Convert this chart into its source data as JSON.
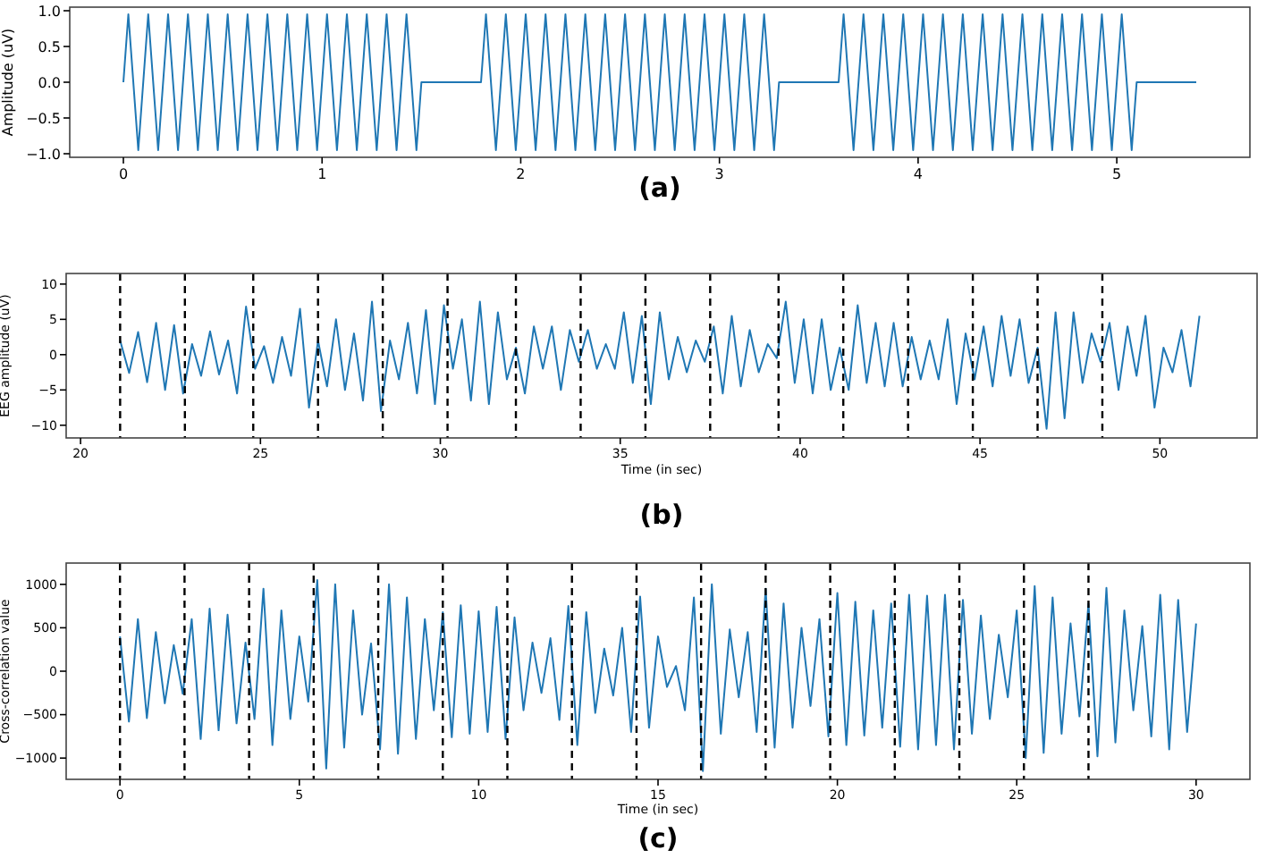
{
  "chart_data": [
    {
      "type": "line",
      "title": "(a)",
      "ylabel": "Amplitude (uV)",
      "color": "#1f77b4",
      "line_style": "solid",
      "xlim": [
        -0.27,
        5.67
      ],
      "ylim": [
        -1.05,
        1.05
      ],
      "xticks": [
        0,
        1,
        2,
        3,
        4,
        5
      ],
      "yticks": [
        {
          "value": -1,
          "label": "−1.0"
        },
        {
          "value": -0.5,
          "label": "−0.5"
        },
        {
          "value": 0,
          "label": "0.0"
        },
        {
          "value": 0.5,
          "label": "0.5"
        },
        {
          "value": 1,
          "label": "1.0"
        }
      ],
      "x": [
        0,
        0.025,
        0.075,
        0.125,
        0.175,
        0.225,
        0.275,
        0.325,
        0.375,
        0.425,
        0.475,
        0.525,
        0.575,
        0.625,
        0.675,
        0.725,
        0.775,
        0.825,
        0.875,
        0.925,
        0.975,
        1.025,
        1.075,
        1.125,
        1.175,
        1.225,
        1.275,
        1.325,
        1.375,
        1.425,
        1.475,
        1.5,
        1.8,
        1.825,
        1.875,
        1.925,
        1.975,
        2.025,
        2.075,
        2.125,
        2.175,
        2.225,
        2.275,
        2.325,
        2.375,
        2.425,
        2.475,
        2.525,
        2.575,
        2.625,
        2.675,
        2.725,
        2.775,
        2.825,
        2.875,
        2.925,
        2.975,
        3.025,
        3.075,
        3.125,
        3.175,
        3.225,
        3.275,
        3.3,
        3.6,
        3.625,
        3.675,
        3.725,
        3.775,
        3.825,
        3.875,
        3.925,
        3.975,
        4.025,
        4.075,
        4.125,
        4.175,
        4.225,
        4.275,
        4.325,
        4.375,
        4.425,
        4.475,
        4.525,
        4.575,
        4.625,
        4.675,
        4.725,
        4.775,
        4.825,
        4.875,
        4.925,
        4.975,
        5.025,
        5.075,
        5.1,
        5.4
      ],
      "values": [
        0,
        0.95,
        -0.95,
        0.95,
        -0.95,
        0.95,
        -0.95,
        0.95,
        -0.95,
        0.95,
        -0.95,
        0.95,
        -0.95,
        0.95,
        -0.95,
        0.95,
        -0.95,
        0.95,
        -0.95,
        0.95,
        -0.95,
        0.95,
        -0.95,
        0.95,
        -0.95,
        0.95,
        -0.95,
        0.95,
        -0.95,
        0.95,
        -0.95,
        0,
        0,
        0.95,
        -0.95,
        0.95,
        -0.95,
        0.95,
        -0.95,
        0.95,
        -0.95,
        0.95,
        -0.95,
        0.95,
        -0.95,
        0.95,
        -0.95,
        0.95,
        -0.95,
        0.95,
        -0.95,
        0.95,
        -0.95,
        0.95,
        -0.95,
        0.95,
        -0.95,
        0.95,
        -0.95,
        0.95,
        -0.95,
        0.95,
        -0.95,
        0,
        0,
        0.95,
        -0.95,
        0.95,
        -0.95,
        0.95,
        -0.95,
        0.95,
        -0.95,
        0.95,
        -0.95,
        0.95,
        -0.95,
        0.95,
        -0.95,
        0.95,
        -0.95,
        0.95,
        -0.95,
        0.95,
        -0.95,
        0.95,
        -0.95,
        0.95,
        -0.95,
        0.95,
        -0.95,
        0.95,
        -0.95,
        0.95,
        -0.95,
        0,
        0
      ]
    },
    {
      "type": "line",
      "title": "(b)",
      "xlabel": "Time (in sec)",
      "ylabel": "EEG amplitude (uV)",
      "color": "#1f77b4",
      "line_style": "solid",
      "xlim": [
        19.6,
        52.7
      ],
      "ylim": [
        -11.8,
        11.5
      ],
      "xticks": [
        20,
        25,
        30,
        35,
        40,
        45,
        50
      ],
      "yticks": [
        {
          "value": -10,
          "label": "−10"
        },
        {
          "value": -5,
          "label": "−5"
        },
        0,
        5,
        10
      ],
      "x": [
        21.1,
        21.35,
        21.6,
        21.85,
        22.1,
        22.35,
        22.6,
        22.85,
        23.1,
        23.35,
        23.6,
        23.85,
        24.1,
        24.35,
        24.6,
        24.85,
        25.1,
        25.35,
        25.6,
        25.85,
        26.1,
        26.35,
        26.6,
        26.85,
        27.1,
        27.35,
        27.6,
        27.85,
        28.1,
        28.35,
        28.6,
        28.85,
        29.1,
        29.35,
        29.6,
        29.85,
        30.1,
        30.35,
        30.6,
        30.85,
        31.1,
        31.35,
        31.6,
        31.85,
        32.1,
        32.35,
        32.6,
        32.85,
        33.1,
        33.35,
        33.6,
        33.85,
        34.1,
        34.35,
        34.6,
        34.85,
        35.1,
        35.35,
        35.6,
        35.85,
        36.1,
        36.35,
        36.6,
        36.85,
        37.1,
        37.35,
        37.6,
        37.85,
        38.1,
        38.35,
        38.6,
        38.85,
        39.1,
        39.35,
        39.6,
        39.85,
        40.1,
        40.35,
        40.6,
        40.85,
        41.1,
        41.35,
        41.6,
        41.85,
        42.1,
        42.35,
        42.6,
        42.85,
        43.1,
        43.35,
        43.6,
        43.85,
        44.1,
        44.35,
        44.6,
        44.85,
        45.1,
        45.35,
        45.6,
        45.85,
        46.1,
        46.35,
        46.6,
        46.85,
        47.1,
        47.35,
        47.6,
        47.85,
        48.1,
        48.35,
        48.6,
        48.85,
        49.1,
        49.35,
        49.6,
        49.85,
        50.1,
        50.35,
        50.6,
        50.85,
        51.1
      ],
      "values": [
        2,
        -2.6,
        3.2,
        -3.9,
        4.5,
        -5,
        4.2,
        -5.5,
        1.5,
        -3,
        3.3,
        -2.8,
        2,
        -5.5,
        6.8,
        -2,
        1.2,
        -4,
        2.5,
        -3,
        6.5,
        -7.5,
        2,
        -4.5,
        5,
        -5,
        3,
        -6.5,
        7.5,
        -8,
        2,
        -3.5,
        4.5,
        -5.5,
        6.3,
        -7,
        7,
        -2,
        5,
        -6.5,
        7.5,
        -7,
        6,
        -3.5,
        1,
        -5.5,
        4,
        -2,
        4,
        -5,
        3.5,
        -1,
        3.5,
        -2,
        1.5,
        -2,
        6,
        -4,
        5.5,
        -7,
        6,
        -3.5,
        2.5,
        -2.5,
        2,
        -1,
        4,
        -5.5,
        5.5,
        -4.5,
        3.5,
        -2.5,
        1.5,
        -0.5,
        7.5,
        -4,
        5,
        -5.5,
        5,
        -5,
        1,
        -5,
        7,
        -4,
        4.5,
        -4.5,
        4.5,
        -4.5,
        2.5,
        -3.5,
        2,
        -3.5,
        5,
        -7,
        3,
        -3.5,
        4,
        -4.5,
        5.5,
        -3,
        5,
        -4,
        1,
        -10.5,
        6,
        -9,
        6,
        -4,
        3,
        -1,
        4.5,
        -5,
        4,
        -3,
        5.5,
        -7.5,
        1,
        -2.5,
        3.5,
        -4.5,
        5.5
      ],
      "ref_lines": [
        {
          "axis": "x",
          "value": 21.1,
          "color": "#000000",
          "line_style": "dashed"
        },
        {
          "axis": "x",
          "value": 22.9,
          "color": "#000000",
          "line_style": "dashed"
        },
        {
          "axis": "x",
          "value": 24.8,
          "color": "#000000",
          "line_style": "dashed"
        },
        {
          "axis": "x",
          "value": 26.6,
          "color": "#000000",
          "line_style": "dashed"
        },
        {
          "axis": "x",
          "value": 28.4,
          "color": "#000000",
          "line_style": "dashed"
        },
        {
          "axis": "x",
          "value": 30.2,
          "color": "#000000",
          "line_style": "dashed"
        },
        {
          "axis": "x",
          "value": 32.1,
          "color": "#000000",
          "line_style": "dashed"
        },
        {
          "axis": "x",
          "value": 33.9,
          "color": "#000000",
          "line_style": "dashed"
        },
        {
          "axis": "x",
          "value": 35.7,
          "color": "#000000",
          "line_style": "dashed"
        },
        {
          "axis": "x",
          "value": 37.5,
          "color": "#000000",
          "line_style": "dashed"
        },
        {
          "axis": "x",
          "value": 39.4,
          "color": "#000000",
          "line_style": "dashed"
        },
        {
          "axis": "x",
          "value": 41.2,
          "color": "#000000",
          "line_style": "dashed"
        },
        {
          "axis": "x",
          "value": 43.0,
          "color": "#000000",
          "line_style": "dashed"
        },
        {
          "axis": "x",
          "value": 44.8,
          "color": "#000000",
          "line_style": "dashed"
        },
        {
          "axis": "x",
          "value": 46.6,
          "color": "#000000",
          "line_style": "dashed"
        },
        {
          "axis": "x",
          "value": 48.4,
          "color": "#000000",
          "line_style": "dashed"
        }
      ]
    },
    {
      "type": "line",
      "title": "(c)",
      "xlabel": "Time (in sec)",
      "ylabel": "Cross-correlation value",
      "color": "#1f77b4",
      "line_style": "solid",
      "xlim": [
        -1.5,
        31.5
      ],
      "ylim": [
        -1245,
        1245
      ],
      "xticks": [
        0,
        5,
        10,
        15,
        20,
        25,
        30
      ],
      "yticks": [
        {
          "value": -1000,
          "label": "−1000"
        },
        {
          "value": -500,
          "label": "−500"
        },
        0,
        500,
        1000
      ],
      "x": [
        0,
        0.25,
        0.5,
        0.75,
        1,
        1.25,
        1.5,
        1.75,
        2,
        2.25,
        2.5,
        2.75,
        3,
        3.25,
        3.5,
        3.75,
        4,
        4.25,
        4.5,
        4.75,
        5,
        5.25,
        5.5,
        5.75,
        6,
        6.25,
        6.5,
        6.75,
        7,
        7.25,
        7.5,
        7.75,
        8,
        8.25,
        8.5,
        8.75,
        9,
        9.25,
        9.5,
        9.75,
        10,
        10.25,
        10.5,
        10.75,
        11,
        11.25,
        11.5,
        11.75,
        12,
        12.25,
        12.5,
        12.75,
        13,
        13.25,
        13.5,
        13.75,
        14,
        14.25,
        14.5,
        14.75,
        15,
        15.25,
        15.5,
        15.75,
        16,
        16.25,
        16.5,
        16.75,
        17,
        17.25,
        17.5,
        17.75,
        18,
        18.25,
        18.5,
        18.75,
        19,
        19.25,
        19.5,
        19.75,
        20,
        20.25,
        20.5,
        20.75,
        21,
        21.25,
        21.5,
        21.75,
        22,
        22.25,
        22.5,
        22.75,
        23,
        23.25,
        23.5,
        23.75,
        24,
        24.25,
        24.5,
        24.75,
        25,
        25.25,
        25.5,
        25.75,
        26,
        26.25,
        26.5,
        26.75,
        27,
        27.25,
        27.5,
        27.75,
        28,
        28.25,
        28.5,
        28.75,
        29,
        29.25,
        29.5,
        29.75,
        30
      ],
      "values": [
        400,
        -580,
        600,
        -540,
        450,
        -370,
        300,
        -260,
        600,
        -780,
        720,
        -680,
        650,
        -600,
        330,
        -550,
        950,
        -850,
        700,
        -550,
        400,
        -350,
        1050,
        -1120,
        1000,
        -880,
        700,
        -500,
        320,
        -900,
        1000,
        -950,
        850,
        -780,
        600,
        -450,
        680,
        -760,
        760,
        -720,
        690,
        -700,
        740,
        -780,
        620,
        -450,
        330,
        -250,
        380,
        -560,
        750,
        -850,
        680,
        -480,
        260,
        -280,
        500,
        -700,
        860,
        -650,
        400,
        -180,
        60,
        -450,
        850,
        -1150,
        1000,
        -720,
        480,
        -300,
        450,
        -700,
        950,
        -880,
        780,
        -650,
        500,
        -400,
        600,
        -750,
        900,
        -850,
        800,
        -740,
        700,
        -650,
        780,
        -870,
        880,
        -900,
        870,
        -850,
        880,
        -900,
        820,
        -720,
        640,
        -550,
        420,
        -300,
        700,
        -1000,
        980,
        -940,
        850,
        -720,
        550,
        -520,
        780,
        -980,
        960,
        -820,
        700,
        -450,
        520,
        -750,
        880,
        -900,
        820,
        -700,
        550
      ],
      "ref_lines": [
        {
          "axis": "x",
          "value": 0,
          "color": "#000000",
          "line_style": "dashed"
        },
        {
          "axis": "x",
          "value": 1.8,
          "color": "#000000",
          "line_style": "dashed"
        },
        {
          "axis": "x",
          "value": 3.6,
          "color": "#000000",
          "line_style": "dashed"
        },
        {
          "axis": "x",
          "value": 5.4,
          "color": "#000000",
          "line_style": "dashed"
        },
        {
          "axis": "x",
          "value": 7.2,
          "color": "#000000",
          "line_style": "dashed"
        },
        {
          "axis": "x",
          "value": 9,
          "color": "#000000",
          "line_style": "dashed"
        },
        {
          "axis": "x",
          "value": 10.8,
          "color": "#000000",
          "line_style": "dashed"
        },
        {
          "axis": "x",
          "value": 12.6,
          "color": "#000000",
          "line_style": "dashed"
        },
        {
          "axis": "x",
          "value": 14.4,
          "color": "#000000",
          "line_style": "dashed"
        },
        {
          "axis": "x",
          "value": 16.2,
          "color": "#000000",
          "line_style": "dashed"
        },
        {
          "axis": "x",
          "value": 18,
          "color": "#000000",
          "line_style": "dashed"
        },
        {
          "axis": "x",
          "value": 19.8,
          "color": "#000000",
          "line_style": "dashed"
        },
        {
          "axis": "x",
          "value": 21.6,
          "color": "#000000",
          "line_style": "dashed"
        },
        {
          "axis": "x",
          "value": 23.4,
          "color": "#000000",
          "line_style": "dashed"
        },
        {
          "axis": "x",
          "value": 25.2,
          "color": "#000000",
          "line_style": "dashed"
        },
        {
          "axis": "x",
          "value": 27,
          "color": "#000000",
          "line_style": "dashed"
        }
      ]
    }
  ]
}
